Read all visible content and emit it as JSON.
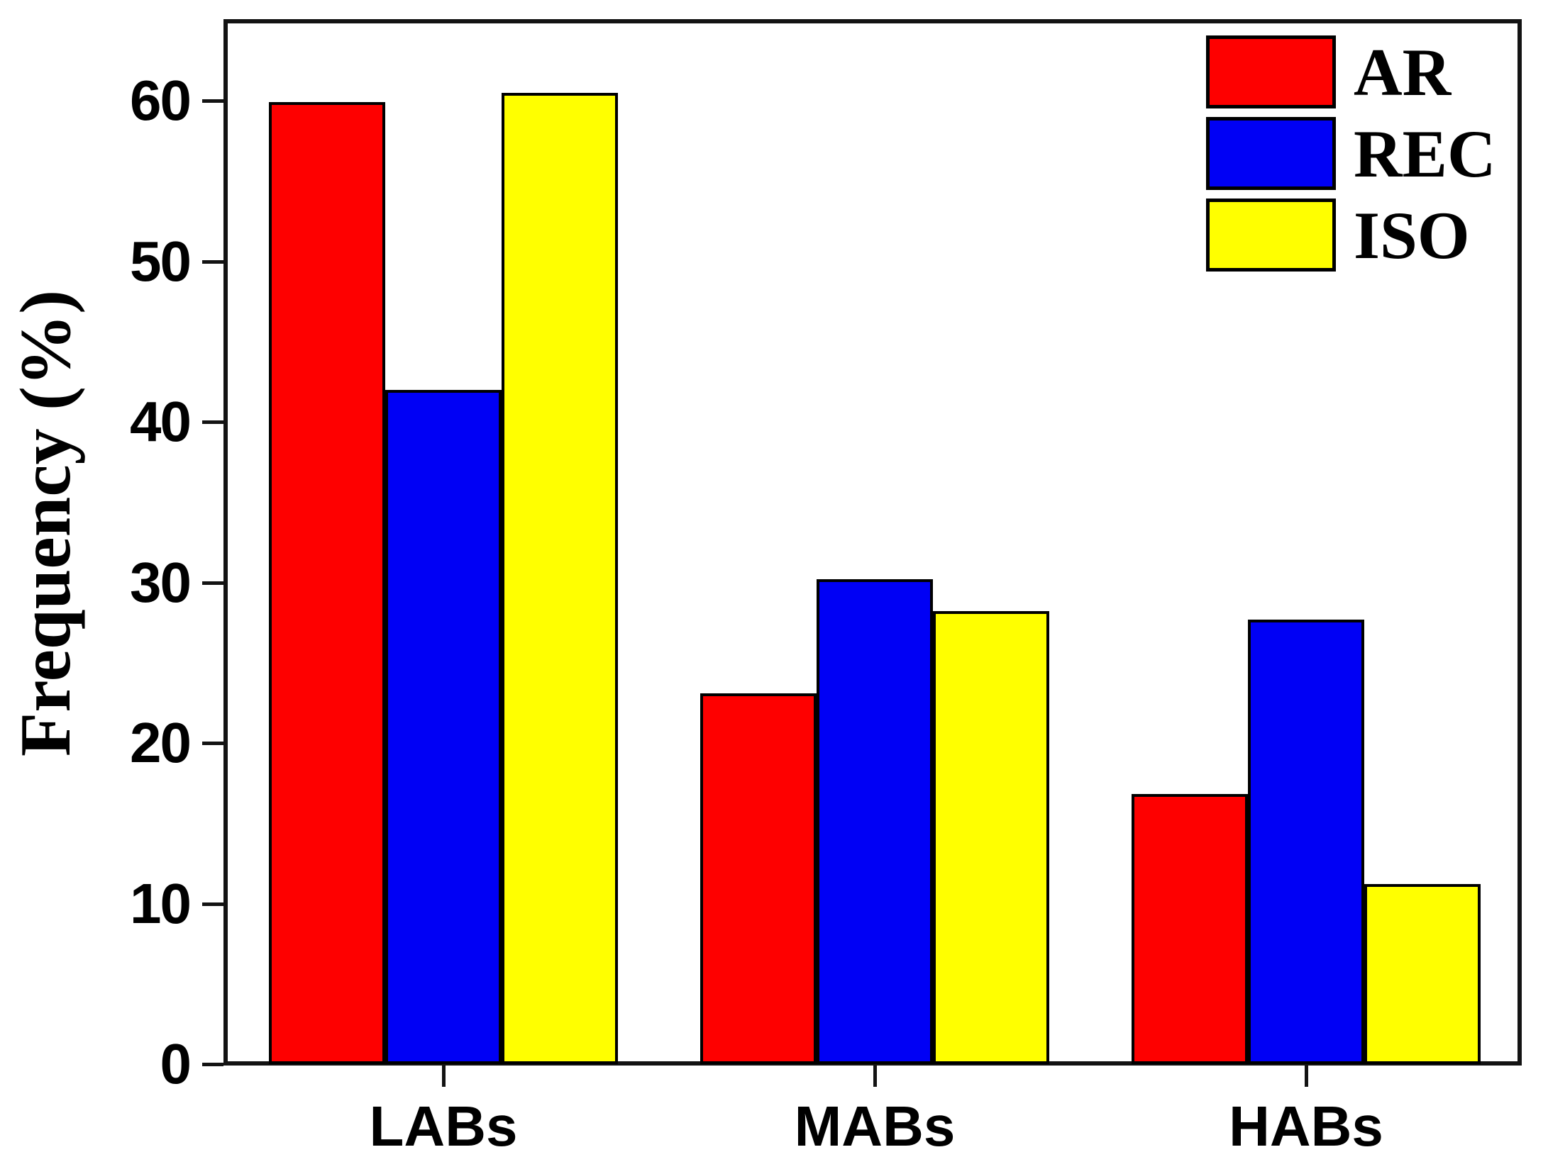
{
  "figure": {
    "background_color": "#ffffff",
    "axis_color": "#131313",
    "text_color": "#000000"
  },
  "chart_data": {
    "type": "bar",
    "title": "",
    "xlabel": "",
    "ylabel": "Frequency (%)",
    "categories": [
      "LABs",
      "MABs",
      "HABs"
    ],
    "series": [
      {
        "name": "AR",
        "color": "#fe0000",
        "values": [
          59.9,
          23.1,
          16.8
        ]
      },
      {
        "name": "REC",
        "color": "#0000f5",
        "values": [
          42.0,
          30.2,
          27.7
        ]
      },
      {
        "name": "ISO",
        "color": "#ffff00",
        "values": [
          60.5,
          28.2,
          11.2
        ]
      }
    ],
    "yticks": [
      0,
      10,
      20,
      30,
      40,
      50,
      60
    ],
    "ylim": [
      0,
      65.1
    ],
    "grid": false,
    "bar_edge_color": "#000000",
    "legend_position": "top-right",
    "legend_labels": [
      "AR",
      "REC",
      "ISO"
    ]
  }
}
